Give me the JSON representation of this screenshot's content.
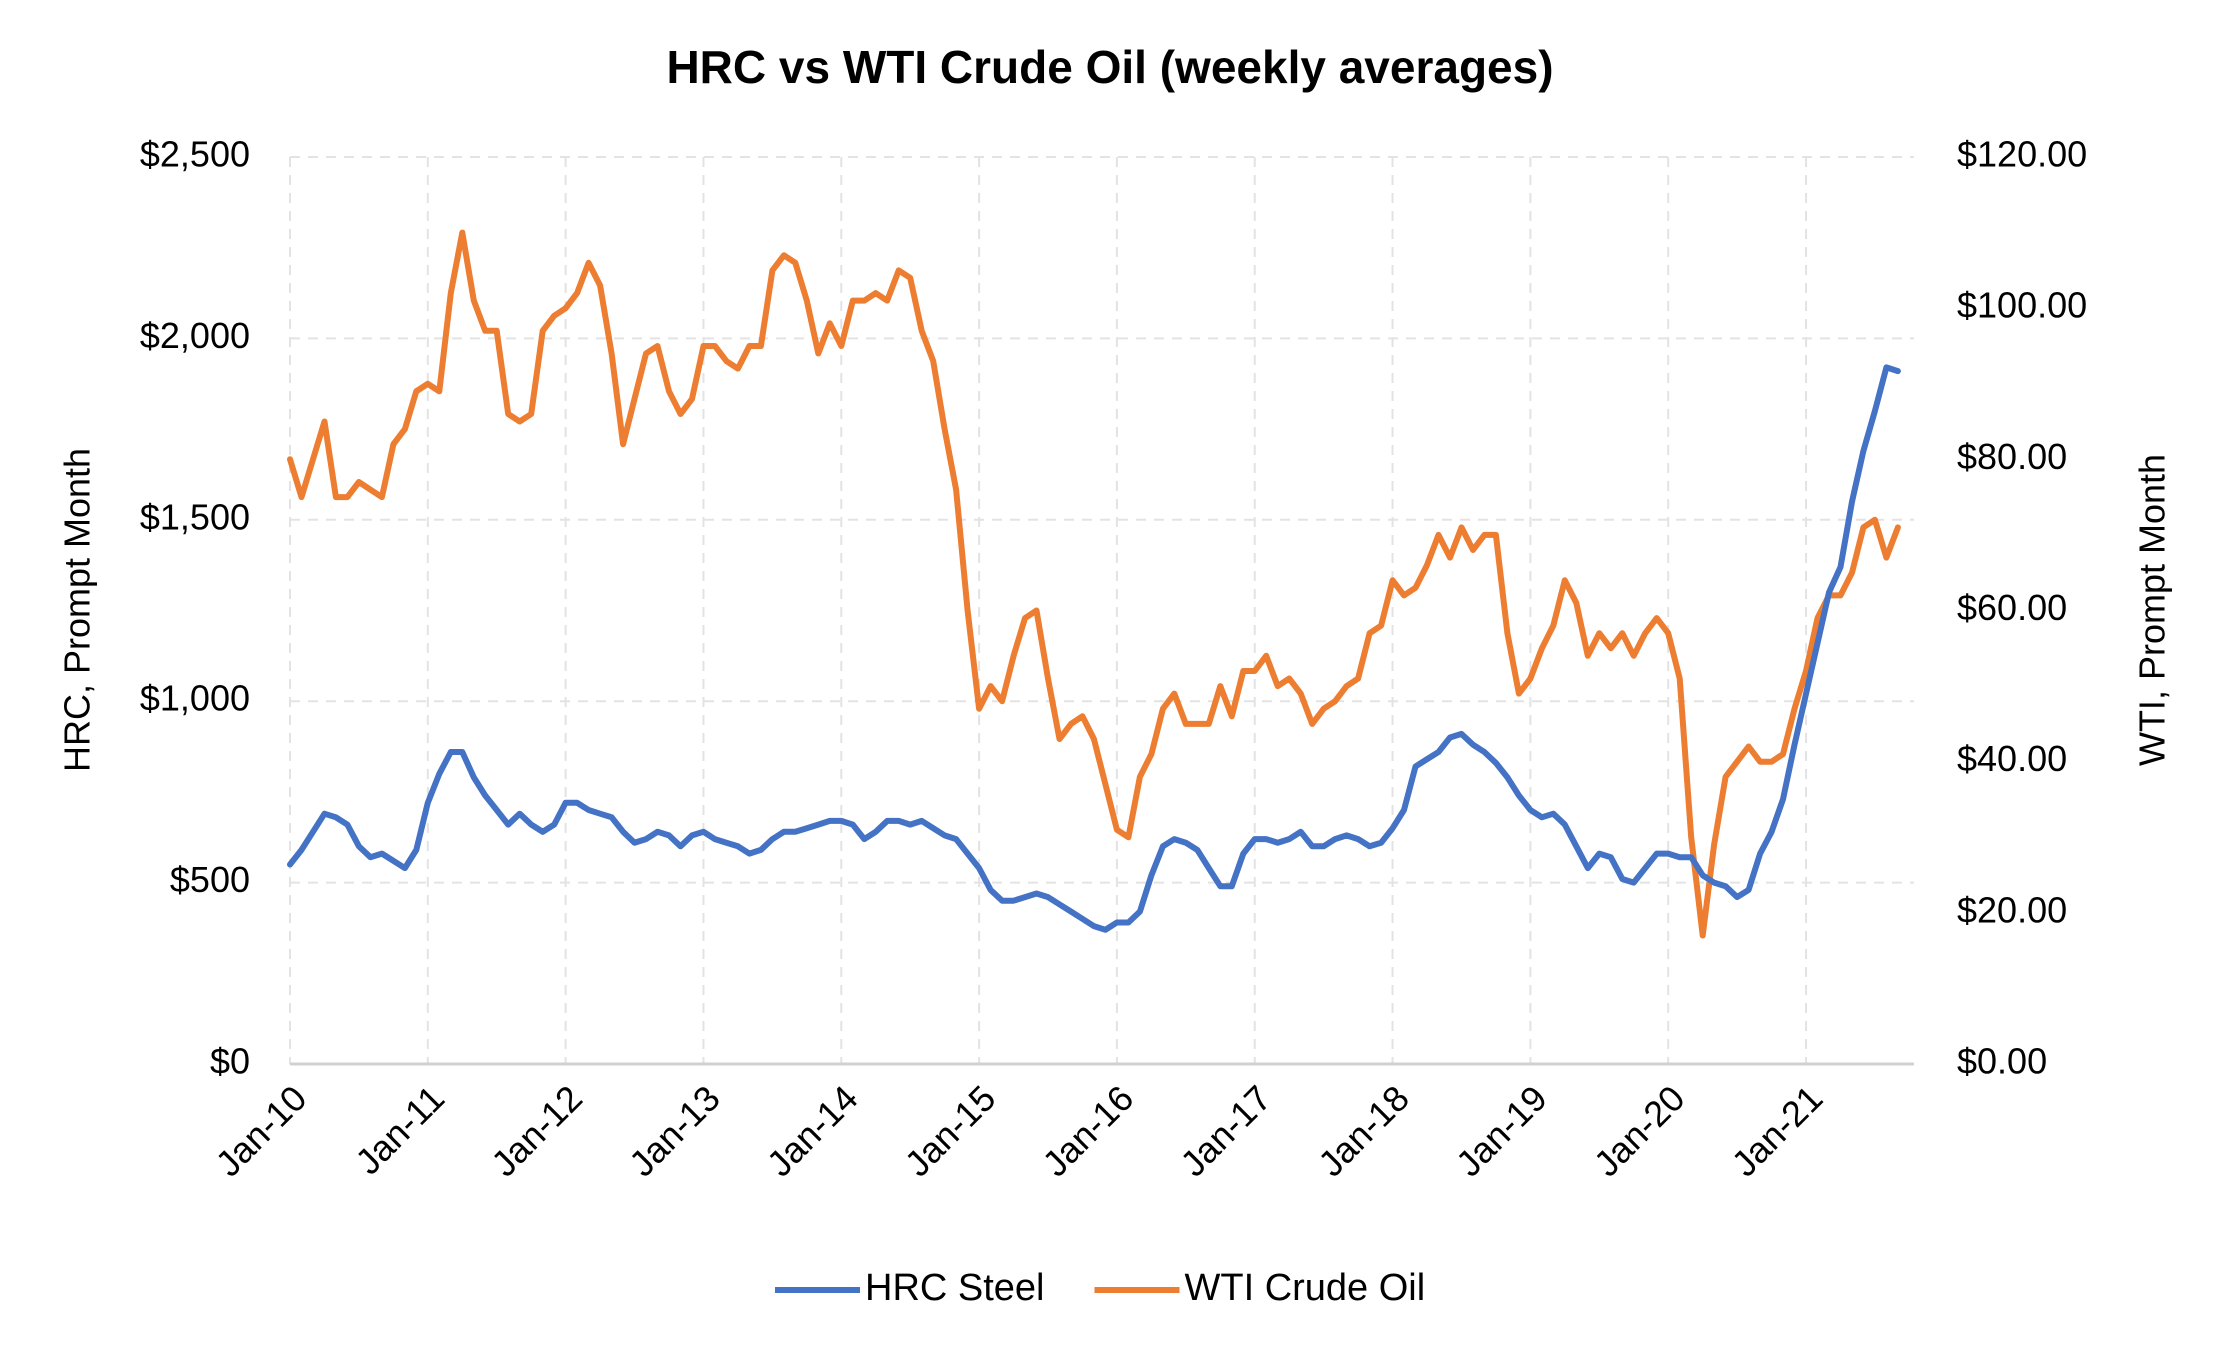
{
  "chart_data": {
    "type": "line",
    "title": "HRC vs WTI Crude Oil (weekly averages)",
    "y_label": "HRC, Prompt Month",
    "y2_label": "WTI, Prompt Month",
    "categories": [
      "Jan-10",
      null,
      null,
      null,
      null,
      null,
      null,
      null,
      null,
      null,
      null,
      null,
      "Jan-11",
      null,
      null,
      null,
      null,
      null,
      null,
      null,
      null,
      null,
      null,
      null,
      "Jan-12",
      null,
      null,
      null,
      null,
      null,
      null,
      null,
      null,
      null,
      null,
      null,
      "Jan-13",
      null,
      null,
      null,
      null,
      null,
      null,
      null,
      null,
      null,
      null,
      null,
      "Jan-14",
      null,
      null,
      null,
      null,
      null,
      null,
      null,
      null,
      null,
      null,
      null,
      "Jan-15",
      null,
      null,
      null,
      null,
      null,
      null,
      null,
      null,
      null,
      null,
      null,
      "Jan-16",
      null,
      null,
      null,
      null,
      null,
      null,
      null,
      null,
      null,
      null,
      null,
      "Jan-17",
      null,
      null,
      null,
      null,
      null,
      null,
      null,
      null,
      null,
      null,
      null,
      "Jan-18",
      null,
      null,
      null,
      null,
      null,
      null,
      null,
      null,
      null,
      null,
      null,
      "Jan-19",
      null,
      null,
      null,
      null,
      null,
      null,
      null,
      null,
      null,
      null,
      null,
      "Jan-20",
      null,
      null,
      null,
      null,
      null,
      null,
      null,
      null,
      null,
      null,
      null,
      "Jan-21",
      null,
      null,
      null,
      null,
      null,
      null,
      null,
      null
    ],
    "series": [
      {
        "name": "HRC Steel",
        "color": "#4472c4",
        "values": [
          550,
          590,
          640,
          690,
          680,
          660,
          600,
          570,
          580,
          560,
          540,
          590,
          720,
          800,
          860,
          860,
          790,
          740,
          700,
          660,
          690,
          660,
          640,
          660,
          720,
          720,
          700,
          690,
          680,
          640,
          610,
          620,
          640,
          630,
          600,
          630,
          640,
          620,
          610,
          600,
          580,
          590,
          620,
          640,
          640,
          650,
          660,
          670,
          670,
          660,
          620,
          640,
          670,
          670,
          660,
          670,
          650,
          630,
          620,
          580,
          540,
          480,
          450,
          450,
          460,
          470,
          460,
          440,
          420,
          400,
          380,
          370,
          390,
          390,
          420,
          520,
          600,
          620,
          610,
          590,
          540,
          490,
          490,
          580,
          620,
          620,
          610,
          620,
          640,
          600,
          600,
          620,
          630,
          620,
          600,
          610,
          650,
          700,
          820,
          840,
          860,
          900,
          910,
          880,
          860,
          830,
          790,
          740,
          700,
          680,
          690,
          660,
          600,
          540,
          580,
          570,
          510,
          500,
          540,
          580,
          580,
          570,
          570,
          520,
          500,
          490,
          460,
          480,
          580,
          640,
          730,
          880,
          1020,
          1160,
          1300,
          1370,
          1550,
          1690,
          1800,
          1920,
          1910
        ]
      },
      {
        "name": "WTI Crude Oil",
        "color": "#ed7d31",
        "axis": "y2",
        "values": [
          80,
          75,
          80,
          85,
          75,
          75,
          77,
          76,
          75,
          82,
          84,
          89,
          90,
          89,
          102,
          110,
          101,
          97,
          97,
          86,
          85,
          86,
          97,
          99,
          100,
          102,
          106,
          103,
          94,
          82,
          88,
          94,
          95,
          89,
          86,
          88,
          95,
          95,
          93,
          92,
          95,
          95,
          105,
          107,
          106,
          101,
          94,
          98,
          95,
          101,
          101,
          102,
          101,
          105,
          104,
          97,
          93,
          84,
          76,
          60,
          47,
          50,
          48,
          54,
          59,
          60,
          51,
          43,
          45,
          46,
          43,
          37,
          31,
          30,
          38,
          41,
          47,
          49,
          45,
          45,
          45,
          50,
          46,
          52,
          52,
          54,
          50,
          51,
          49,
          45,
          47,
          48,
          50,
          51,
          57,
          58,
          64,
          62,
          63,
          66,
          70,
          67,
          71,
          68,
          70,
          70,
          57,
          49,
          51,
          55,
          58,
          64,
          61,
          54,
          57,
          55,
          57,
          54,
          57,
          59,
          57,
          51,
          30,
          17,
          29,
          38,
          40,
          42,
          40,
          40,
          41,
          47,
          52,
          59,
          62,
          62,
          65,
          71,
          72,
          67,
          71
        ]
      }
    ],
    "ylim": [
      0,
      2500
    ],
    "yticks": [
      {
        "value": 0,
        "label": "$0"
      },
      {
        "value": 500,
        "label": "$500"
      },
      {
        "value": 1000,
        "label": "$1,000"
      },
      {
        "value": 1500,
        "label": "$1,500"
      },
      {
        "value": 2000,
        "label": "$2,000"
      },
      {
        "value": 2500,
        "label": "$2,500"
      }
    ],
    "y2lim": [
      0,
      120
    ],
    "y2ticks": [
      {
        "value": 0,
        "label": "$0.00"
      },
      {
        "value": 20,
        "label": "$20.00"
      },
      {
        "value": 40,
        "label": "$40.00"
      },
      {
        "value": 60,
        "label": "$60.00"
      },
      {
        "value": 80,
        "label": "$80.00"
      },
      {
        "value": 100,
        "label": "$100.00"
      },
      {
        "value": 120,
        "label": "$120.00"
      }
    ],
    "grid": true,
    "legend": "bottom"
  }
}
